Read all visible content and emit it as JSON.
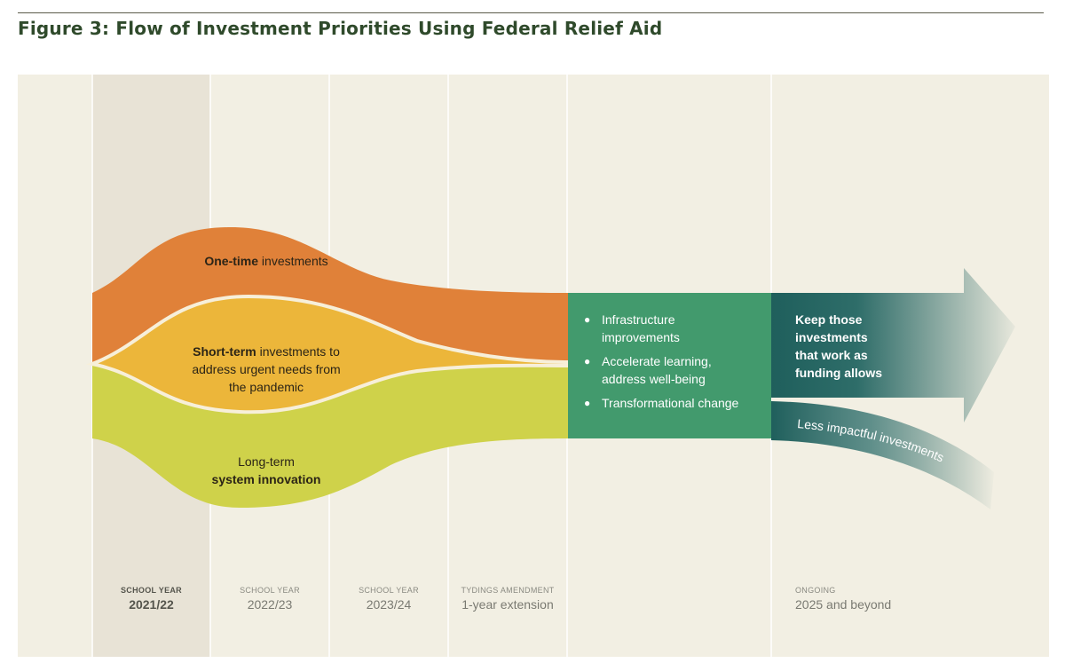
{
  "title": "Figure 3: Flow of Investment Priorities Using Federal Relief Aid",
  "bands": {
    "one_time": {
      "bold": "One-time",
      "rest": " investments"
    },
    "short_term": {
      "bold": "Short-term",
      "line1_rest": " investments to",
      "line2": "address urgent needs from",
      "line3": "the pandemic"
    },
    "long_term": {
      "line1": "Long-term",
      "line2": "system innovation"
    }
  },
  "outcomes": {
    "items": [
      {
        "line1": "Infrastructure",
        "line2": "improvements"
      },
      {
        "line1": "Accelerate learning,",
        "line2": "address well-being"
      },
      {
        "line1": "Transformational change",
        "line2": ""
      }
    ]
  },
  "arrows": {
    "keep": {
      "line1": "Keep those",
      "line2": "investments",
      "line3": "that work as",
      "line4": "funding allows"
    },
    "less": "Less impactful investments"
  },
  "columns": [
    {
      "small": "SCHOOL YEAR",
      "big": "2021/22"
    },
    {
      "small": "SCHOOL YEAR",
      "big": "2022/23"
    },
    {
      "small": "SCHOOL YEAR",
      "big": "2023/24"
    },
    {
      "small": "TYDINGS AMENDMENT",
      "big": "1-year extension"
    },
    {
      "small": "ONGOING",
      "big": "2025 and beyond"
    }
  ],
  "colors": {
    "orange": "#e08139",
    "yellow": "#ecb63a",
    "lime": "#cfd24a",
    "green": "#429a6d",
    "teal": "#1f5f5c",
    "background": "#f2efe3",
    "highlight_column": "#e8e3d6"
  },
  "icons": {
    "bullet": "bullet-icon",
    "arrow": "arrow-right-icon",
    "curve": "curved-arrow-icon"
  }
}
